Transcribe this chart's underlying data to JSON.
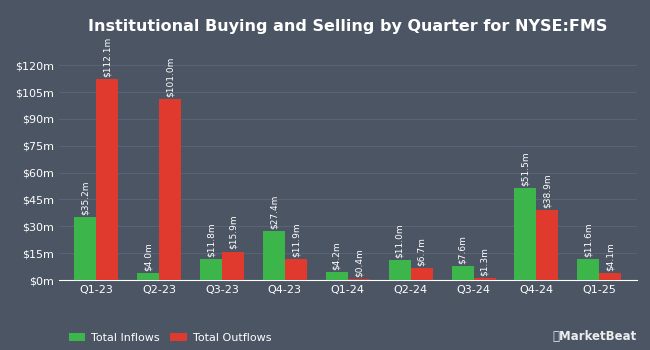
{
  "title": "Institutional Buying and Selling by Quarter for NYSE:FMS",
  "quarters": [
    "Q1-23",
    "Q2-23",
    "Q3-23",
    "Q4-23",
    "Q1-24",
    "Q2-24",
    "Q3-24",
    "Q4-24",
    "Q1-25"
  ],
  "inflows": [
    35.2,
    4.0,
    11.8,
    27.4,
    4.2,
    11.0,
    7.6,
    51.5,
    11.6
  ],
  "outflows": [
    112.1,
    101.0,
    15.9,
    11.9,
    0.4,
    6.7,
    1.3,
    38.9,
    4.1
  ],
  "inflow_labels": [
    "$35.2m",
    "$4.0m",
    "$11.8m",
    "$27.4m",
    "$4.2m",
    "$11.0m",
    "$7.6m",
    "$51.5m",
    "$11.6m"
  ],
  "outflow_labels": [
    "$112.1m",
    "$101.0m",
    "$15.9m",
    "$11.9m",
    "$0.4m",
    "$6.7m",
    "$1.3m",
    "$38.9m",
    "$4.1m"
  ],
  "inflow_color": "#3cb54a",
  "outflow_color": "#e03a2e",
  "bg_color": "#4b5563",
  "text_color": "#ffffff",
  "grid_color": "#5c6678",
  "legend_inflow": "Total Inflows",
  "legend_outflow": "Total Outflows",
  "yticks": [
    0,
    15,
    30,
    45,
    60,
    75,
    90,
    105,
    120
  ],
  "ytick_labels": [
    "$0m",
    "$15m",
    "$30m",
    "$45m",
    "$60m",
    "$75m",
    "$90m",
    "$105m",
    "$120m"
  ],
  "ylim": [
    0,
    133
  ],
  "bar_width": 0.35,
  "label_fontsize": 6.5,
  "title_fontsize": 11.5,
  "tick_fontsize": 8,
  "legend_fontsize": 8
}
